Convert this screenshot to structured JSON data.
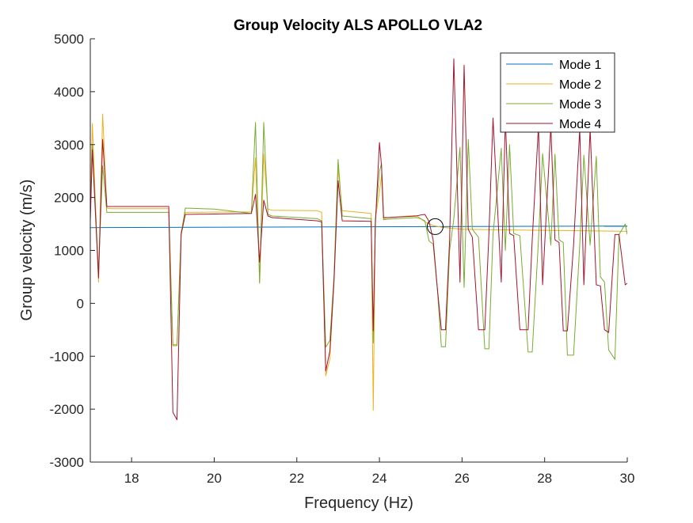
{
  "chart_data": {
    "type": "line",
    "title": "Group Velocity ALS APOLLO VLA2",
    "xlabel": "Frequency (Hz)",
    "ylabel": "Group velocity (m/s)",
    "xlim": [
      17,
      30
    ],
    "ylim": [
      -3000,
      5000
    ],
    "xticks": [
      18,
      20,
      22,
      24,
      26,
      28,
      30
    ],
    "xtick_labels": [
      "18",
      "20",
      "22",
      "24",
      "26",
      "28",
      "30"
    ],
    "yticks": [
      -3000,
      -2000,
      -1000,
      0,
      1000,
      2000,
      3000,
      4000,
      5000
    ],
    "ytick_labels": [
      "-3000",
      "-2000",
      "-1000",
      "0",
      "1000",
      "2000",
      "3000",
      "4000",
      "5000"
    ],
    "grid": false,
    "legend": "top-right",
    "annotation": {
      "type": "circle",
      "x": 25.35,
      "y": 1450
    },
    "series": [
      {
        "name": "Mode 1",
        "color": "#0072BD",
        "x": [
          17,
          30
        ],
        "y": [
          1430,
          1460
        ]
      },
      {
        "name": "Mode 2",
        "color": "#EDB120",
        "x": [
          17,
          17.05,
          17.2,
          17.3,
          17.4,
          17.5,
          18.9,
          19.0,
          19.1,
          19.2,
          19.3,
          20.9,
          21.0,
          21.1,
          21.2,
          21.3,
          21.4,
          22.5,
          22.6,
          22.7,
          22.8,
          22.9,
          23.0,
          23.1,
          23.8,
          23.85,
          23.9,
          24.0,
          24.05,
          24.1,
          24.2,
          24.9,
          25.1,
          25.3,
          25.5,
          26.0,
          28.0,
          30
        ],
        "y": [
          1750,
          3400,
          400,
          3580,
          1800,
          1790,
          1790,
          -780,
          -780,
          1350,
          1720,
          1730,
          2750,
          400,
          2820,
          1780,
          1760,
          1750,
          1720,
          -1370,
          -1050,
          460,
          2550,
          1750,
          1700,
          -2020,
          1600,
          2100,
          2420,
          1600,
          1620,
          1660,
          1540,
          1470,
          1440,
          1400,
          1380,
          1360
        ]
      },
      {
        "name": "Mode 3",
        "color": "#77AC30",
        "x": [
          17,
          17.05,
          17.2,
          17.3,
          17.4,
          17.5,
          18.9,
          19.0,
          19.1,
          19.2,
          19.3,
          20.0,
          20.9,
          21.0,
          21.1,
          21.2,
          21.3,
          21.4,
          22.5,
          22.6,
          22.7,
          22.8,
          22.9,
          23.0,
          23.1,
          23.8,
          23.85,
          23.9,
          24.0,
          24.05,
          24.1,
          24.2,
          24.9,
          25.0,
          25.1,
          25.2,
          25.3,
          25.4,
          25.5,
          25.6,
          25.7,
          25.8,
          25.95,
          26.05,
          26.15,
          26.25,
          26.4,
          26.55,
          26.65,
          26.75,
          26.95,
          27.05,
          27.15,
          27.25,
          27.4,
          27.6,
          27.7,
          27.85,
          27.95,
          28.15,
          28.25,
          28.35,
          28.45,
          28.55,
          28.7,
          28.85,
          28.95,
          29.1,
          29.25,
          29.35,
          29.45,
          29.55,
          29.7,
          29.8,
          29.95,
          30.0
        ],
        "y": [
          1700,
          3000,
          600,
          2600,
          1720,
          1720,
          1720,
          -800,
          -800,
          1300,
          1800,
          1780,
          1700,
          3420,
          380,
          3420,
          1680,
          1650,
          1600,
          1560,
          -830,
          -700,
          500,
          2720,
          1650,
          1600,
          -750,
          1580,
          2500,
          2640,
          1580,
          1590,
          1620,
          1600,
          1560,
          1180,
          1120,
          300,
          -820,
          -820,
          1000,
          1600,
          2950,
          300,
          3100,
          1400,
          1250,
          -860,
          -860,
          1300,
          2930,
          1000,
          3000,
          1320,
          1280,
          -920,
          -920,
          1200,
          2830,
          1100,
          2820,
          1200,
          1150,
          -980,
          -980,
          1100,
          2800,
          1100,
          2780,
          500,
          400,
          -880,
          -1060,
          1300,
          1500,
          1300
        ]
      },
      {
        "name": "Mode 4",
        "color": "#A2142F",
        "x": [
          17,
          17.05,
          17.2,
          17.3,
          17.4,
          17.5,
          18.9,
          19.0,
          19.1,
          19.2,
          19.3,
          20.9,
          21.0,
          21.1,
          21.2,
          21.3,
          21.4,
          22.5,
          22.6,
          22.7,
          22.8,
          22.9,
          23.0,
          23.1,
          23.8,
          23.85,
          23.9,
          24.0,
          24.05,
          24.1,
          24.2,
          24.9,
          25.0,
          25.1,
          25.2,
          25.3,
          25.4,
          25.5,
          25.6,
          25.7,
          25.8,
          25.95,
          26.05,
          26.15,
          26.25,
          26.4,
          26.55,
          26.65,
          26.75,
          26.95,
          27.05,
          27.15,
          27.25,
          27.4,
          27.6,
          27.7,
          27.85,
          27.95,
          28.15,
          28.25,
          28.35,
          28.45,
          28.55,
          28.7,
          28.85,
          28.95,
          29.1,
          29.25,
          29.35,
          29.45,
          29.55,
          29.7,
          29.8,
          29.95,
          30.0
        ],
        "y": [
          1550,
          2900,
          480,
          3100,
          1830,
          1830,
          1830,
          -2060,
          -2200,
          1300,
          1680,
          1700,
          2060,
          780,
          1950,
          1650,
          1620,
          1560,
          1540,
          -1280,
          -900,
          400,
          2320,
          1560,
          1550,
          -520,
          1480,
          3040,
          2600,
          1620,
          1620,
          1650,
          1670,
          1680,
          1550,
          1200,
          300,
          -500,
          -500,
          1200,
          4620,
          400,
          4500,
          1400,
          1250,
          -500,
          -500,
          1300,
          3500,
          400,
          3500,
          1320,
          1280,
          -500,
          -500,
          1200,
          3350,
          350,
          3350,
          1200,
          1150,
          -520,
          -520,
          1100,
          3300,
          350,
          3300,
          350,
          330,
          -500,
          -550,
          1300,
          1300,
          350,
          380
        ]
      }
    ]
  }
}
